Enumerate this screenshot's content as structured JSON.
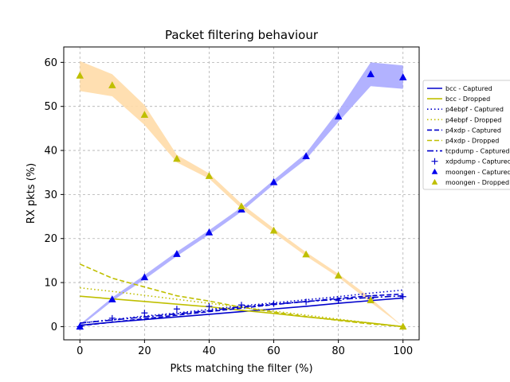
{
  "chart_data": {
    "type": "line",
    "title": "Packet filtering behaviour",
    "xlabel": "Pkts matching the filter (%)",
    "ylabel": "RX pkts (%)",
    "xlim": [
      -5,
      105
    ],
    "ylim": [
      -3,
      63.5
    ],
    "xticks": [
      0,
      20,
      40,
      60,
      80,
      100
    ],
    "yticks": [
      0,
      10,
      20,
      30,
      40,
      50,
      60
    ],
    "grid": true,
    "legend_position": "right",
    "x": [
      0,
      10,
      20,
      30,
      40,
      50,
      60,
      70,
      80,
      90,
      100
    ],
    "series": [
      {
        "name": "bcc - Captured",
        "style": "solid",
        "color": "#0000cc",
        "values": [
          0.3,
          1.0,
          1.6,
          2.2,
          2.8,
          3.4,
          4.0,
          4.6,
          5.3,
          5.9,
          6.5
        ]
      },
      {
        "name": "bcc - Dropped",
        "style": "solid",
        "color": "#bfbf00",
        "values": [
          6.9,
          6.3,
          5.7,
          5.1,
          4.5,
          3.7,
          3.0,
          2.2,
          1.5,
          0.8,
          0.0
        ]
      },
      {
        "name": "p4ebpf - Captured",
        "style": "dotted",
        "color": "#0000cc",
        "values": [
          0.8,
          1.6,
          2.4,
          3.1,
          3.9,
          4.7,
          5.4,
          6.1,
          6.8,
          7.6,
          8.3
        ]
      },
      {
        "name": "p4ebpf - Dropped",
        "style": "dotted",
        "color": "#bfbf00",
        "values": [
          8.8,
          8.0,
          7.1,
          6.2,
          5.3,
          4.4,
          3.5,
          2.6,
          1.7,
          0.8,
          0.0
        ]
      },
      {
        "name": "p4xdp - Captured",
        "style": "dashed",
        "color": "#0000cc",
        "values": [
          0.2,
          1.0,
          1.8,
          2.6,
          3.4,
          4.2,
          5.0,
          5.7,
          6.4,
          7.0,
          7.4
        ]
      },
      {
        "name": "p4xdp - Dropped",
        "style": "dashed",
        "color": "#bfbf00",
        "values": [
          14.2,
          11.0,
          9.0,
          7.0,
          5.8,
          4.4,
          3.3,
          2.3,
          1.4,
          0.6,
          0.0
        ]
      },
      {
        "name": "tcpdump - Captured",
        "style": "dashdot",
        "color": "#0000cc",
        "values": [
          0.8,
          1.5,
          2.2,
          2.9,
          3.6,
          4.5,
          5.1,
          5.7,
          6.2,
          6.6,
          7.0
        ]
      },
      {
        "name": "xdpdump - Captured",
        "style": "plus",
        "color": "#0000cc",
        "values": [
          0.0,
          1.9,
          3.1,
          4.0,
          4.6,
          4.9,
          5.2,
          5.6,
          5.9,
          6.4,
          6.8
        ]
      },
      {
        "name": "moongen - Captured",
        "style": "triangle",
        "color": "#0000ee",
        "band_color": "#aaaaff",
        "values": [
          0.0,
          6.2,
          11.2,
          16.5,
          21.4,
          26.6,
          32.8,
          38.7,
          47.7,
          57.3,
          56.6
        ],
        "band_low": [
          0.0,
          5.8,
          10.7,
          16.0,
          20.9,
          26.1,
          32.3,
          38.0,
          46.5,
          54.6,
          54.0
        ],
        "band_high": [
          0.5,
          6.6,
          11.7,
          17.0,
          21.9,
          27.1,
          33.3,
          39.4,
          49.0,
          60.0,
          59.3
        ]
      },
      {
        "name": "moongen - Dropped",
        "style": "triangle",
        "color": "#bfbf00",
        "band_color": "#ffdca8",
        "values": [
          57.0,
          54.8,
          48.1,
          38.1,
          34.2,
          27.3,
          21.8,
          16.4,
          11.6,
          6.0,
          0.0
        ],
        "band_low": [
          53.5,
          52.3,
          45.8,
          37.3,
          33.6,
          26.8,
          21.3,
          16.0,
          11.2,
          5.5,
          0.0
        ],
        "band_high": [
          60.3,
          57.3,
          50.3,
          39.0,
          34.8,
          27.9,
          22.3,
          16.9,
          12.0,
          6.5,
          0.0
        ]
      }
    ]
  }
}
